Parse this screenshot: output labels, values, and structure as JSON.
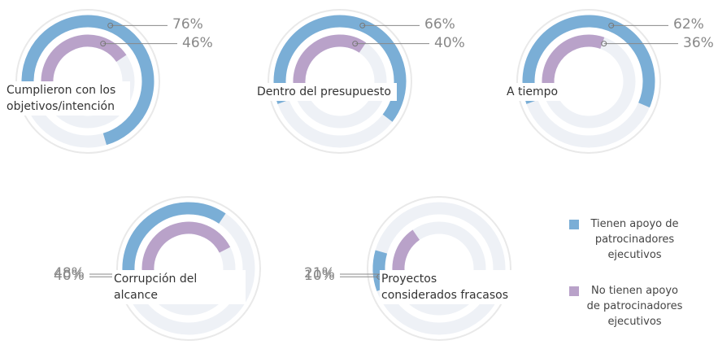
{
  "chart_data": {
    "type": "radial_bar",
    "categories": [
      "Cumplieron con los objetivos/intención",
      "Dentro del presupuesto",
      "A tiempo",
      "Corrupción del alcance",
      "Proyectos considerados fracasos"
    ],
    "series": [
      {
        "name": "Tienen apoyo de patrocinadores ejecutivos",
        "color": "#7aaed6",
        "values": [
          76,
          66,
          62,
          40,
          10
        ],
        "value_labels": [
          "76%",
          "66%",
          "62%",
          "40%",
          "10%"
        ]
      },
      {
        "name": "No tienen apoyo de patrocinadores ejecutivos",
        "color": "#b9a2c9",
        "values": [
          46,
          40,
          36,
          48,
          21
        ],
        "value_labels": [
          "46%",
          "40%",
          "36%",
          "48%",
          "21%"
        ]
      }
    ],
    "ylim": [
      0,
      100
    ]
  }
}
